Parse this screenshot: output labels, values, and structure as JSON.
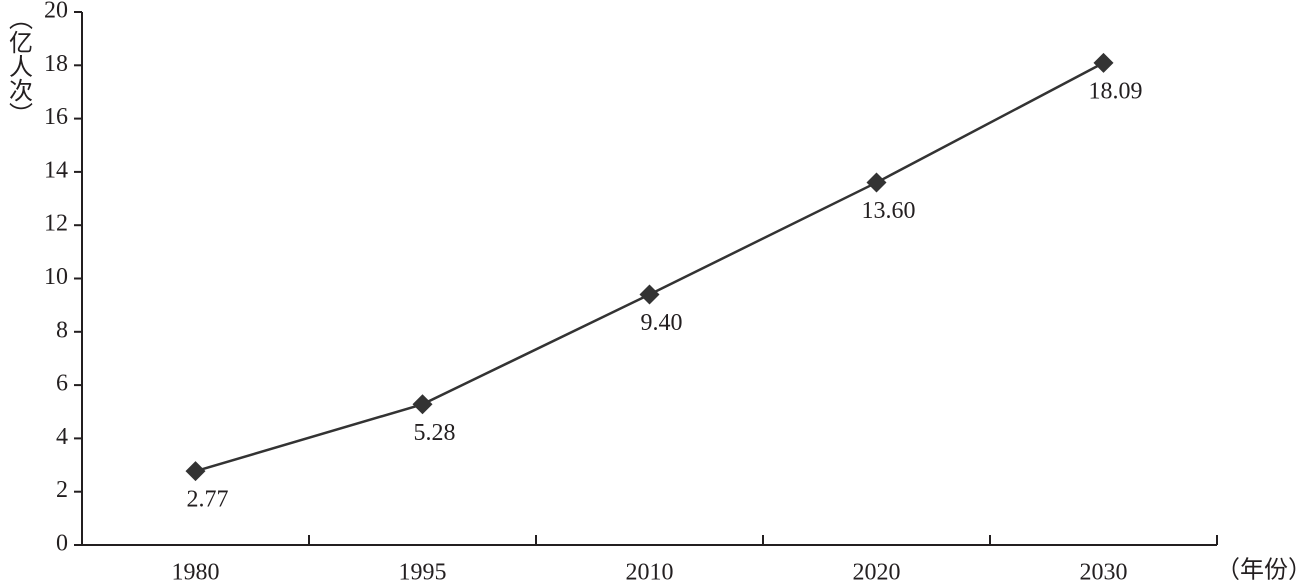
{
  "chart_data": {
    "type": "line",
    "y_label": "（亿人次）",
    "x_label": "（年份）",
    "categories": [
      "1980",
      "1995",
      "2010",
      "2020",
      "2030"
    ],
    "values": [
      2.77,
      5.28,
      9.4,
      13.6,
      18.09
    ],
    "value_labels": [
      "2.77",
      "5.28",
      "9.40",
      "13.60",
      "18.09"
    ],
    "color": "#333333",
    "ylim": [
      0,
      20
    ],
    "yticks": [
      0,
      2,
      4,
      6,
      8,
      10,
      12,
      14,
      16,
      18,
      20
    ]
  }
}
